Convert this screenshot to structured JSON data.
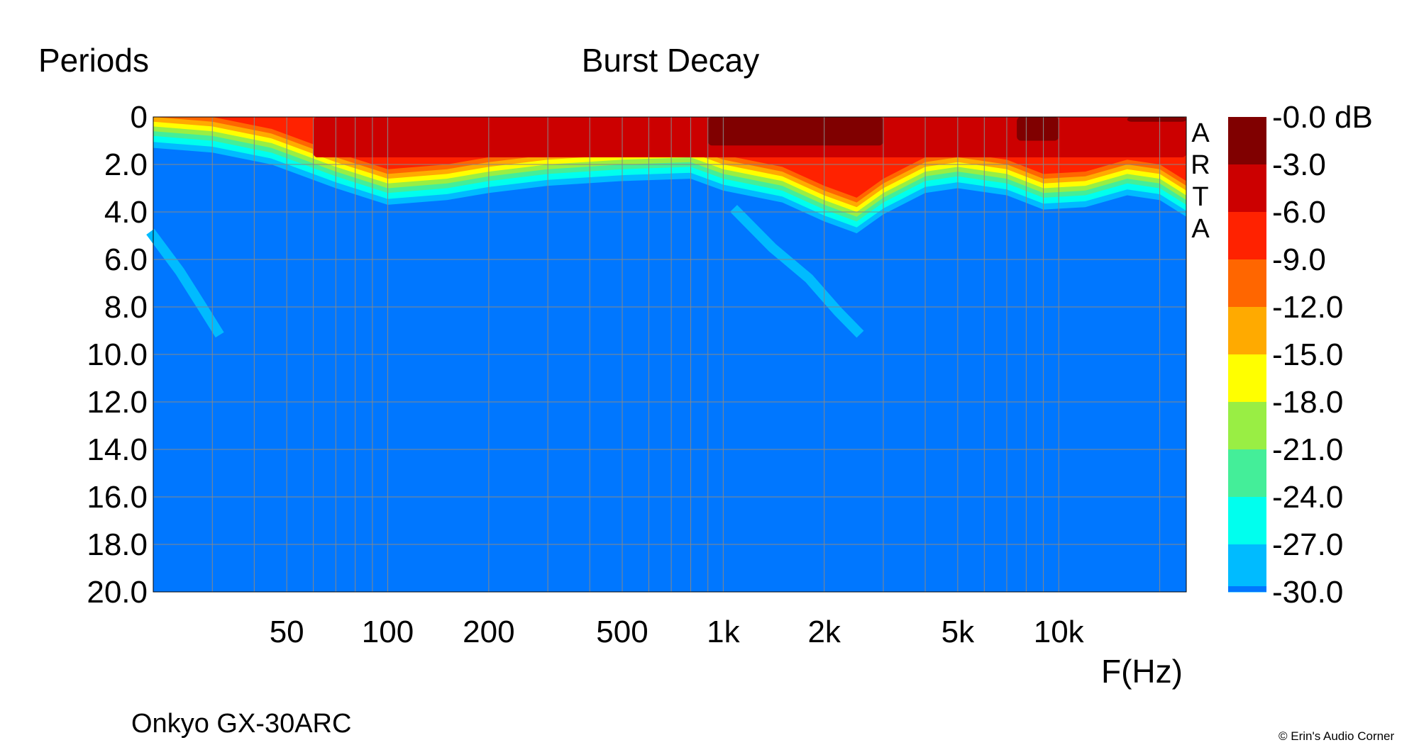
{
  "chart_data": {
    "type": "heatmap",
    "title": "Burst Decay",
    "ylabel": "Periods",
    "xlabel": "F(Hz)",
    "xscale": "log",
    "xlim": [
      20,
      24000
    ],
    "ylim": [
      0,
      20
    ],
    "yreversed": true,
    "x_ticks": [
      {
        "value": 50,
        "label": "50"
      },
      {
        "value": 100,
        "label": "100"
      },
      {
        "value": 200,
        "label": "200"
      },
      {
        "value": 500,
        "label": "500"
      },
      {
        "value": 1000,
        "label": "1k"
      },
      {
        "value": 2000,
        "label": "2k"
      },
      {
        "value": 5000,
        "label": "5k"
      },
      {
        "value": 10000,
        "label": "10k"
      }
    ],
    "y_ticks": [
      "0",
      "2.0",
      "4.0",
      "6.0",
      "8.0",
      "10.0",
      "12.0",
      "14.0",
      "16.0",
      "18.0",
      "20.0"
    ],
    "grid": true,
    "colorbar": {
      "labels": [
        "-0.0 dB",
        "-3.0",
        "-6.0",
        "-9.0",
        "-12.0",
        "-15.0",
        "-18.0",
        "-21.0",
        "-24.0",
        "-27.0",
        "-30.0"
      ],
      "colors": [
        "#800000",
        "#cc0000",
        "#ff2200",
        "#ff6600",
        "#ffaa00",
        "#ffff00",
        "#99ee44",
        "#44ee99",
        "#00ffee",
        "#00bbff",
        "#0077ff"
      ]
    },
    "background_color": "#0077ff",
    "regions": [
      {
        "level": 1,
        "color": "#cc0000",
        "freq": [
          60,
          24000
        ],
        "periods": [
          0,
          1.7
        ]
      },
      {
        "level": 0,
        "color": "#800000",
        "freq": [
          900,
          3000
        ],
        "periods": [
          0,
          1.2
        ]
      },
      {
        "level": 0,
        "color": "#800000",
        "freq": [
          7500,
          10000
        ],
        "periods": [
          0,
          1.0
        ]
      },
      {
        "level": 0,
        "color": "#800000",
        "freq": [
          16000,
          24000
        ],
        "periods": [
          0,
          0.2
        ]
      }
    ],
    "decay_front_periods": [
      {
        "freq": 20,
        "periods": 1.3
      },
      {
        "freq": 30,
        "periods": 1.5
      },
      {
        "freq": 45,
        "periods": 2.0
      },
      {
        "freq": 70,
        "periods": 3.0
      },
      {
        "freq": 100,
        "periods": 3.7
      },
      {
        "freq": 150,
        "periods": 3.5
      },
      {
        "freq": 200,
        "periods": 3.2
      },
      {
        "freq": 300,
        "periods": 2.9
      },
      {
        "freq": 500,
        "periods": 2.7
      },
      {
        "freq": 800,
        "periods": 2.6
      },
      {
        "freq": 1000,
        "periods": 3.1
      },
      {
        "freq": 1500,
        "periods": 3.6
      },
      {
        "freq": 2000,
        "periods": 4.4
      },
      {
        "freq": 2500,
        "periods": 4.9
      },
      {
        "freq": 3000,
        "periods": 4.1
      },
      {
        "freq": 4000,
        "periods": 3.2
      },
      {
        "freq": 5000,
        "periods": 3.0
      },
      {
        "freq": 7000,
        "periods": 3.3
      },
      {
        "freq": 9000,
        "periods": 3.9
      },
      {
        "freq": 12000,
        "periods": 3.8
      },
      {
        "freq": 16000,
        "periods": 3.3
      },
      {
        "freq": 20000,
        "periods": 3.5
      },
      {
        "freq": 24000,
        "periods": 4.2
      }
    ],
    "resonance_trails": [
      {
        "name": "",
        "color": "#00bbff",
        "points": [
          {
            "freq": 20,
            "periods": 5.0
          },
          {
            "freq": 24,
            "periods": 6.5
          },
          {
            "freq": 28,
            "periods": 8.0
          },
          {
            "freq": 31,
            "periods": 9.0
          }
        ]
      },
      {
        "name": "",
        "color": "#00bbff",
        "points": [
          {
            "freq": 1100,
            "periods": 4.0
          },
          {
            "freq": 1400,
            "periods": 5.5
          },
          {
            "freq": 1800,
            "periods": 6.8
          },
          {
            "freq": 2200,
            "periods": 8.2
          },
          {
            "freq": 2500,
            "periods": 9.0
          }
        ]
      }
    ]
  },
  "labels": {
    "ylabel": "Periods",
    "title": "Burst Decay",
    "xunit": "F(Hz)",
    "device": "Onkyo GX-30ARC",
    "brand": [
      "A",
      "R",
      "T",
      "A"
    ],
    "copyright": "© Erin's Audio Corner"
  }
}
